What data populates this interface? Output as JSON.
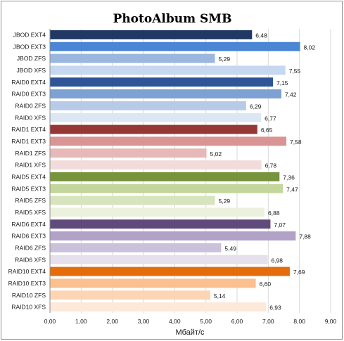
{
  "chart_data": {
    "type": "bar",
    "orientation": "horizontal",
    "title": "PhotoAlbum  SMB",
    "xlabel": "Мбайт/с",
    "ylabel": "",
    "xlim": [
      0,
      9
    ],
    "x_ticks": [
      "0,00",
      "1,00",
      "2,00",
      "3,00",
      "4,00",
      "5,00",
      "6,00",
      "7,00",
      "8,00",
      "9,00"
    ],
    "grid": true,
    "legend": "none",
    "categories": [
      "JBOD EXT4",
      "JBOD EXT3",
      "JBOD ZFS",
      "JBOD XFS",
      "RAID0 EXT4",
      "RAID0 EXT3",
      "RAID0 ZFS",
      "RAID0 XFS",
      "RAID1 EXT4",
      "RAID1 EXT3",
      "RAID1 ZFS",
      "RAID1 XFS",
      "RAID5 EXT4",
      "RAID5 EXT3",
      "RAID5 ZFS",
      "RAID5 XFS",
      "RAID6 EXT4",
      "RAID6 EXT3",
      "RAID6 ZFS",
      "RAID6 XFS",
      "RAID10 EXT4",
      "RAID10 EXT3",
      "RAID10 ZFS",
      "RAID10 XFS"
    ],
    "values": [
      6.48,
      8.02,
      5.29,
      7.55,
      7.15,
      7.42,
      6.29,
      6.77,
      6.65,
      7.58,
      5.02,
      6.78,
      7.36,
      7.47,
      5.29,
      6.88,
      7.07,
      7.88,
      5.49,
      6.98,
      7.69,
      6.6,
      5.14,
      6.93
    ],
    "value_labels": [
      "6,48",
      "8,02",
      "5,29",
      "7,55",
      "7,15",
      "7,42",
      "6,29",
      "6,77",
      "6,65",
      "7,58",
      "5,02",
      "6,78",
      "7,36",
      "7,47",
      "5,29",
      "6,88",
      "7,07",
      "7,88",
      "5,49",
      "6,98",
      "7,69",
      "6,60",
      "5,14",
      "6,93"
    ],
    "colors": [
      "#1f3864",
      "#4a86d4",
      "#9bb7e0",
      "#c6d8f0",
      "#2e5596",
      "#7ea1d3",
      "#b7cbe8",
      "#dde7f4",
      "#963735",
      "#d99594",
      "#e6b8b7",
      "#f2dcdb",
      "#77933c",
      "#c3d69b",
      "#d7e4bd",
      "#ebf1dd",
      "#604a7b",
      "#b2a2c7",
      "#ccc1da",
      "#e5e0ec",
      "#e46c0a",
      "#fac090",
      "#fcd5b5",
      "#fde9d9"
    ]
  }
}
